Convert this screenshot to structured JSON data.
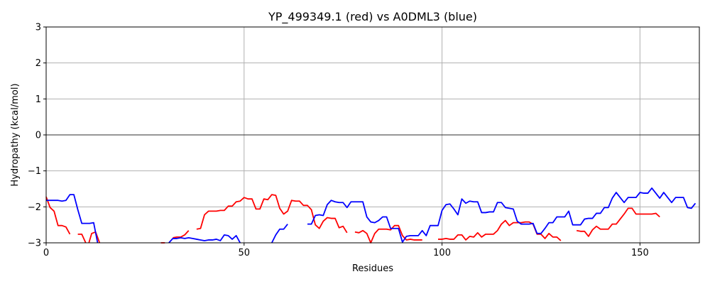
{
  "chart_data": {
    "type": "line",
    "title": "YP_499349.1 (red) vs A0DML3 (blue)",
    "xlabel": "Residues",
    "ylabel": "Hydropathy (kcal/mol)",
    "xlim": [
      0,
      165
    ],
    "ylim": [
      -3,
      3
    ],
    "x_ticks": [
      0,
      50,
      100,
      150
    ],
    "y_ticks": [
      -3,
      -2,
      -1,
      0,
      1,
      2,
      3
    ],
    "x_tick_labels": [
      "0",
      "50",
      "100",
      "150"
    ],
    "y_tick_labels": [
      "−3",
      "−2",
      "−1",
      "0",
      "1",
      "2",
      "3"
    ],
    "grid": true,
    "zero_line": true,
    "colors": {
      "red": "#ff0000",
      "blue": "#0000ff",
      "grid": "#b0b0b0",
      "zero_line": "#000000"
    },
    "series": [
      {
        "color": "#ff0000",
        "segments": [
          [
            [
              0,
              -1.72
            ],
            [
              1,
              -2.02
            ],
            [
              2,
              -2.12
            ],
            [
              3,
              -2.52
            ],
            [
              4,
              -2.52
            ],
            [
              5,
              -2.56
            ],
            [
              6,
              -2.76
            ]
          ],
          [
            [
              8,
              -2.76
            ],
            [
              9,
              -2.76
            ],
            [
              10,
              -3.0
            ]
          ],
          [
            [
              10.8,
              -3.0
            ],
            [
              11.5,
              -2.74
            ],
            [
              12.5,
              -2.7
            ],
            [
              13.5,
              -3.0
            ]
          ],
          [
            [
              29,
              -3.0
            ],
            [
              30,
              -3.0
            ]
          ],
          [
            [
              32,
              -2.86
            ],
            [
              33,
              -2.84
            ],
            [
              34,
              -2.84
            ],
            [
              35,
              -2.78
            ],
            [
              36,
              -2.66
            ]
          ],
          [
            [
              38,
              -2.62
            ],
            [
              39,
              -2.6
            ],
            [
              40,
              -2.22
            ],
            [
              41,
              -2.12
            ],
            [
              42,
              -2.12
            ],
            [
              43,
              -2.12
            ],
            [
              44,
              -2.1
            ],
            [
              45,
              -2.1
            ],
            [
              46,
              -1.98
            ],
            [
              47,
              -1.98
            ],
            [
              48,
              -1.86
            ],
            [
              49,
              -1.84
            ],
            [
              50,
              -1.74
            ],
            [
              51,
              -1.78
            ],
            [
              52,
              -1.78
            ],
            [
              53,
              -2.06
            ],
            [
              54,
              -2.06
            ],
            [
              55,
              -1.78
            ],
            [
              56,
              -1.8
            ],
            [
              57,
              -1.66
            ],
            [
              58,
              -1.68
            ],
            [
              59,
              -2.04
            ],
            [
              60,
              -2.2
            ],
            [
              61,
              -2.12
            ],
            [
              62,
              -1.82
            ],
            [
              63,
              -1.84
            ],
            [
              64,
              -1.84
            ],
            [
              65,
              -1.96
            ],
            [
              66,
              -1.96
            ],
            [
              67,
              -2.08
            ],
            [
              68,
              -2.5
            ],
            [
              69,
              -2.6
            ],
            [
              70,
              -2.4
            ],
            [
              71,
              -2.3
            ],
            [
              72,
              -2.32
            ],
            [
              73,
              -2.32
            ],
            [
              74,
              -2.58
            ],
            [
              75,
              -2.54
            ],
            [
              76,
              -2.72
            ]
          ],
          [
            [
              78,
              -2.7
            ],
            [
              79,
              -2.72
            ],
            [
              80,
              -2.66
            ],
            [
              81,
              -2.74
            ],
            [
              82,
              -3.0
            ],
            [
              83,
              -2.74
            ],
            [
              84,
              -2.62
            ],
            [
              85,
              -2.62
            ],
            [
              86,
              -2.62
            ],
            [
              87,
              -2.64
            ],
            [
              88,
              -2.52
            ],
            [
              89,
              -2.52
            ],
            [
              90,
              -2.8
            ],
            [
              91,
              -2.92
            ],
            [
              92,
              -2.9
            ],
            [
              93,
              -2.92
            ],
            [
              94,
              -2.92
            ],
            [
              95,
              -2.92
            ]
          ],
          [
            [
              99,
              -2.9
            ],
            [
              100,
              -2.9
            ],
            [
              101,
              -2.88
            ],
            [
              102,
              -2.9
            ],
            [
              103,
              -2.9
            ],
            [
              104,
              -2.78
            ],
            [
              105,
              -2.78
            ],
            [
              106,
              -2.92
            ],
            [
              107,
              -2.82
            ],
            [
              108,
              -2.84
            ],
            [
              109,
              -2.72
            ],
            [
              110,
              -2.84
            ],
            [
              111,
              -2.76
            ],
            [
              112,
              -2.76
            ],
            [
              113,
              -2.76
            ],
            [
              114,
              -2.66
            ],
            [
              115,
              -2.48
            ],
            [
              116,
              -2.38
            ],
            [
              117,
              -2.52
            ],
            [
              118,
              -2.44
            ],
            [
              119,
              -2.44
            ],
            [
              120,
              -2.44
            ],
            [
              121,
              -2.42
            ],
            [
              122,
              -2.42
            ],
            [
              123,
              -2.48
            ],
            [
              124,
              -2.76
            ],
            [
              125,
              -2.76
            ],
            [
              126,
              -2.88
            ],
            [
              127,
              -2.74
            ],
            [
              128,
              -2.84
            ],
            [
              129,
              -2.84
            ],
            [
              130,
              -2.94
            ]
          ],
          [
            [
              134,
              -2.66
            ],
            [
              135,
              -2.68
            ],
            [
              136,
              -2.68
            ],
            [
              137,
              -2.82
            ],
            [
              138,
              -2.64
            ],
            [
              139,
              -2.54
            ],
            [
              140,
              -2.62
            ],
            [
              141,
              -2.62
            ],
            [
              142,
              -2.62
            ],
            [
              143,
              -2.48
            ],
            [
              144,
              -2.48
            ],
            [
              145,
              -2.34
            ],
            [
              146,
              -2.2
            ],
            [
              147,
              -2.04
            ],
            [
              148,
              -2.04
            ],
            [
              149,
              -2.2
            ],
            [
              150,
              -2.2
            ],
            [
              151,
              -2.2
            ],
            [
              152,
              -2.2
            ],
            [
              153,
              -2.2
            ],
            [
              154,
              -2.18
            ],
            [
              155,
              -2.28
            ]
          ]
        ]
      },
      {
        "color": "#0000ff",
        "segments": [
          [
            [
              0,
              -1.82
            ],
            [
              1,
              -1.82
            ],
            [
              2,
              -1.82
            ],
            [
              3,
              -1.82
            ],
            [
              4,
              -1.84
            ],
            [
              5,
              -1.82
            ],
            [
              6,
              -1.66
            ],
            [
              7,
              -1.66
            ],
            [
              8,
              -2.08
            ],
            [
              9,
              -2.46
            ],
            [
              10,
              -2.46
            ],
            [
              11,
              -2.46
            ],
            [
              12,
              -2.44
            ],
            [
              13,
              -3.0
            ]
          ],
          [
            [
              31,
              -3.0
            ],
            [
              32,
              -2.88
            ],
            [
              33,
              -2.88
            ],
            [
              34,
              -2.86
            ],
            [
              35,
              -2.88
            ],
            [
              36,
              -2.86
            ],
            [
              37,
              -2.88
            ],
            [
              38,
              -2.9
            ],
            [
              39,
              -2.92
            ],
            [
              40,
              -2.94
            ],
            [
              41,
              -2.92
            ],
            [
              42,
              -2.92
            ],
            [
              43,
              -2.9
            ],
            [
              44,
              -2.94
            ],
            [
              45,
              -2.78
            ],
            [
              46,
              -2.8
            ],
            [
              47,
              -2.9
            ],
            [
              48,
              -2.8
            ],
            [
              49,
              -3.0
            ]
          ],
          [
            [
              57,
              -3.0
            ],
            [
              58,
              -2.78
            ],
            [
              59,
              -2.62
            ],
            [
              60,
              -2.62
            ],
            [
              61,
              -2.48
            ]
          ],
          [
            [
              66,
              -2.48
            ],
            [
              67,
              -2.48
            ],
            [
              68,
              -2.24
            ],
            [
              69,
              -2.22
            ],
            [
              70,
              -2.24
            ],
            [
              71,
              -1.94
            ],
            [
              72,
              -1.82
            ],
            [
              73,
              -1.86
            ],
            [
              74,
              -1.88
            ],
            [
              75,
              -1.88
            ],
            [
              76,
              -2.02
            ],
            [
              77,
              -1.86
            ],
            [
              78,
              -1.86
            ],
            [
              79,
              -1.86
            ],
            [
              80,
              -1.86
            ],
            [
              81,
              -2.28
            ],
            [
              82,
              -2.42
            ],
            [
              83,
              -2.44
            ],
            [
              84,
              -2.38
            ],
            [
              85,
              -2.28
            ],
            [
              86,
              -2.28
            ],
            [
              87,
              -2.6
            ],
            [
              88,
              -2.6
            ],
            [
              89,
              -2.6
            ],
            [
              90,
              -2.98
            ],
            [
              91,
              -2.82
            ],
            [
              92,
              -2.8
            ],
            [
              93,
              -2.8
            ],
            [
              94,
              -2.8
            ],
            [
              95,
              -2.66
            ],
            [
              96,
              -2.8
            ],
            [
              97,
              -2.52
            ],
            [
              98,
              -2.52
            ],
            [
              99,
              -2.52
            ],
            [
              100,
              -2.1
            ],
            [
              101,
              -1.94
            ],
            [
              102,
              -1.92
            ],
            [
              103,
              -2.06
            ],
            [
              104,
              -2.22
            ],
            [
              105,
              -1.78
            ],
            [
              106,
              -1.9
            ],
            [
              107,
              -1.84
            ],
            [
              108,
              -1.86
            ],
            [
              109,
              -1.86
            ],
            [
              110,
              -2.16
            ],
            [
              111,
              -2.16
            ],
            [
              112,
              -2.14
            ],
            [
              113,
              -2.14
            ],
            [
              114,
              -1.88
            ],
            [
              115,
              -1.88
            ],
            [
              116,
              -2.02
            ],
            [
              117,
              -2.04
            ],
            [
              118,
              -2.06
            ],
            [
              119,
              -2.4
            ],
            [
              120,
              -2.48
            ],
            [
              121,
              -2.48
            ],
            [
              122,
              -2.48
            ],
            [
              123,
              -2.46
            ],
            [
              124,
              -2.74
            ],
            [
              125,
              -2.74
            ],
            [
              126,
              -2.6
            ],
            [
              127,
              -2.44
            ],
            [
              128,
              -2.44
            ],
            [
              129,
              -2.28
            ],
            [
              130,
              -2.28
            ],
            [
              131,
              -2.28
            ],
            [
              132,
              -2.12
            ],
            [
              133,
              -2.5
            ],
            [
              134,
              -2.5
            ],
            [
              135,
              -2.5
            ],
            [
              136,
              -2.34
            ],
            [
              137,
              -2.32
            ],
            [
              138,
              -2.32
            ],
            [
              139,
              -2.18
            ],
            [
              140,
              -2.18
            ],
            [
              141,
              -2.02
            ],
            [
              142,
              -2.02
            ],
            [
              143,
              -1.76
            ],
            [
              144,
              -1.6
            ],
            [
              145,
              -1.74
            ],
            [
              146,
              -1.88
            ],
            [
              147,
              -1.74
            ],
            [
              148,
              -1.74
            ],
            [
              149,
              -1.74
            ],
            [
              150,
              -1.6
            ],
            [
              151,
              -1.62
            ],
            [
              152,
              -1.62
            ],
            [
              153,
              -1.48
            ],
            [
              154,
              -1.62
            ],
            [
              155,
              -1.76
            ],
            [
              156,
              -1.6
            ],
            [
              157,
              -1.74
            ],
            [
              158,
              -1.88
            ],
            [
              159,
              -1.74
            ],
            [
              160,
              -1.74
            ],
            [
              161,
              -1.74
            ],
            [
              162,
              -2.02
            ],
            [
              163,
              -2.04
            ],
            [
              164,
              -1.9
            ]
          ]
        ]
      }
    ]
  }
}
